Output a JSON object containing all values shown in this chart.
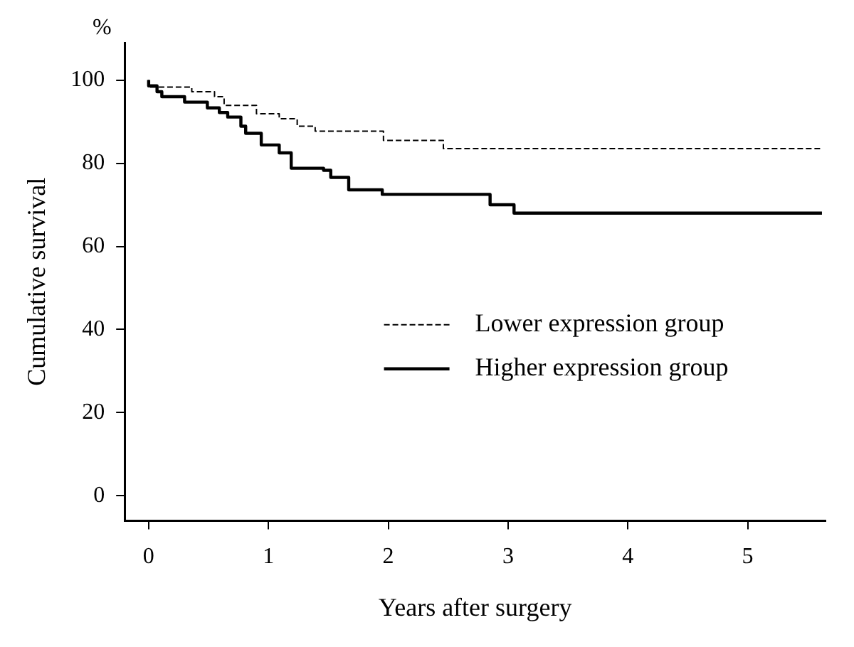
{
  "chart_data": {
    "type": "step",
    "xlabel": "Years after surgery",
    "ylabel": "Cumulative survival",
    "annotations": [
      "%"
    ],
    "xlim": [
      -0.2,
      5.65
    ],
    "xticks": [
      0,
      1,
      2,
      3,
      4,
      5
    ],
    "ylim": [
      -6,
      109
    ],
    "yticks": [
      0,
      20,
      40,
      60,
      80,
      100
    ],
    "grid": false,
    "legend": "right",
    "marker": "none",
    "series": [
      {
        "name": "Lower expression group",
        "color": "#000000",
        "line_style": "dashed",
        "x": [
          0,
          0.36,
          0.55,
          0.63,
          0.9,
          1.09,
          1.24,
          1.39,
          1.96,
          2.46,
          4.24,
          5.62
        ],
        "values": [
          100,
          98.3,
          97.2,
          96,
          93.9,
          91.9,
          90.7,
          88.9,
          87.7,
          85.5,
          83.5,
          83.5
        ]
      },
      {
        "name": "Higher expression group",
        "color": "#000000",
        "line_style": "solid",
        "x": [
          0,
          0.07,
          0.11,
          0.3,
          0.49,
          0.59,
          0.66,
          0.77,
          0.81,
          0.94,
          1.09,
          1.19,
          1.46,
          1.52,
          1.67,
          1.95,
          2.85,
          3.05,
          3.65,
          5.62
        ],
        "values": [
          100,
          98.6,
          97.2,
          96,
          94.7,
          93.3,
          92.2,
          91.1,
          88.9,
          87.2,
          84.4,
          82.5,
          78.8,
          78.3,
          76.6,
          73.6,
          72.5,
          70,
          68,
          68
        ]
      }
    ]
  }
}
